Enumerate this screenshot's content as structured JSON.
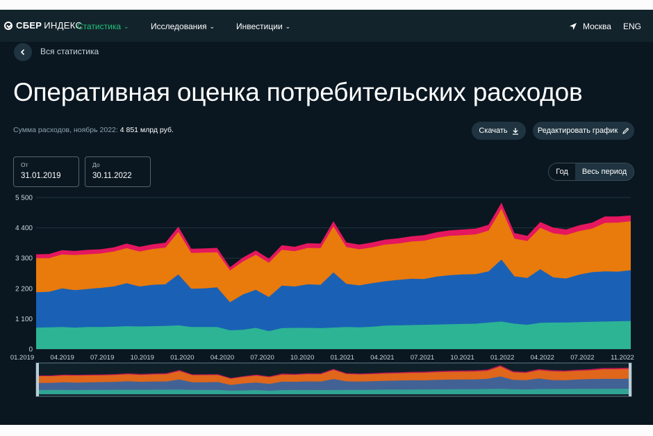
{
  "nav": {
    "logo_part1": "СБЕР",
    "logo_part2": "ИНДЕКС",
    "section": "Статистика",
    "items": [
      "Исследования",
      "Инвестиции"
    ],
    "location": "Москва",
    "language": "ENG"
  },
  "back_label": "Вся статистика",
  "page_title": "Оперативная оценка потребительских расходов",
  "summary": {
    "label": "Сумма расходов, ноябрь 2022:",
    "value": "4 851 млрд руб."
  },
  "buttons": {
    "download": "Скачать",
    "edit_chart": "Редактировать график"
  },
  "date_from": {
    "label": "От",
    "value": "31.01.2019"
  },
  "date_to": {
    "label": "До",
    "value": "30.11.2022"
  },
  "period_toggle": {
    "options": [
      "Год",
      "Весь период"
    ],
    "selected": "Весь период"
  },
  "colors": {
    "accent": "#21c47a",
    "background": "#0a1720",
    "series": [
      "#2db494",
      "#1a61b5",
      "#e97a0c",
      "#e5175f"
    ]
  },
  "chart_data": {
    "type": "area",
    "stacked": true,
    "ylim": [
      0,
      5500
    ],
    "y_ticks": [
      "0",
      "1 100",
      "2 200",
      "3 300",
      "4 400",
      "5 500"
    ],
    "x_ticks": [
      "01.2019",
      "04.2019",
      "07.2019",
      "10.2019",
      "01.2020",
      "04.2020",
      "07.2020",
      "10.2020",
      "01.2021",
      "04.2021",
      "07.2021",
      "10.2021",
      "01.2022",
      "04.2022",
      "07.2022",
      "11.2022"
    ],
    "x": [
      "2019-01",
      "2019-02",
      "2019-03",
      "2019-04",
      "2019-05",
      "2019-06",
      "2019-07",
      "2019-08",
      "2019-09",
      "2019-10",
      "2019-11",
      "2019-12",
      "2020-01",
      "2020-02",
      "2020-03",
      "2020-04",
      "2020-05",
      "2020-06",
      "2020-07",
      "2020-08",
      "2020-09",
      "2020-10",
      "2020-11",
      "2020-12",
      "2021-01",
      "2021-02",
      "2021-03",
      "2021-04",
      "2021-05",
      "2021-06",
      "2021-07",
      "2021-08",
      "2021-09",
      "2021-10",
      "2021-11",
      "2021-12",
      "2022-01",
      "2022-02",
      "2022-03",
      "2022-04",
      "2022-05",
      "2022-06",
      "2022-07",
      "2022-08",
      "2022-09",
      "2022-10",
      "2022-11"
    ],
    "series": [
      {
        "values": [
          780,
          790,
          800,
          780,
          800,
          800,
          810,
          830,
          820,
          830,
          840,
          860,
          800,
          800,
          800,
          680,
          700,
          770,
          650,
          760,
          770,
          770,
          760,
          780,
          800,
          790,
          810,
          850,
          860,
          870,
          880,
          890,
          900,
          910,
          920,
          960,
          1000,
          920,
          880,
          950,
          960,
          960,
          980,
          990,
          1000,
          1010,
          1020
        ]
      },
      {
        "values": [
          1280,
          1290,
          1400,
          1360,
          1380,
          1420,
          1460,
          1560,
          1450,
          1500,
          1510,
          1850,
          1390,
          1400,
          1440,
          1020,
          1280,
          1380,
          1240,
          1540,
          1500,
          1580,
          1570,
          2000,
          1570,
          1520,
          1580,
          1610,
          1650,
          1680,
          1660,
          1740,
          1780,
          1800,
          1800,
          1860,
          2250,
          1720,
          1700,
          1950,
          1640,
          1600,
          1720,
          1800,
          1820,
          1800,
          1840
        ]
      },
      {
        "values": [
          1240,
          1220,
          1230,
          1270,
          1260,
          1250,
          1270,
          1270,
          1270,
          1300,
          1330,
          1540,
          1300,
          1300,
          1270,
          1150,
          1200,
          1270,
          1240,
          1300,
          1280,
          1320,
          1330,
          1670,
          1330,
          1310,
          1300,
          1330,
          1320,
          1350,
          1390,
          1410,
          1430,
          1420,
          1440,
          1480,
          1840,
          1370,
          1340,
          1500,
          1600,
          1580,
          1580,
          1580,
          1760,
          1780,
          1780
        ]
      },
      {
        "values": [
          140,
          150,
          160,
          150,
          160,
          150,
          150,
          170,
          170,
          170,
          180,
          190,
          150,
          150,
          160,
          120,
          140,
          160,
          150,
          170,
          160,
          170,
          170,
          190,
          170,
          170,
          180,
          180,
          190,
          190,
          200,
          200,
          200,
          210,
          210,
          210,
          220,
          200,
          190,
          210,
          210,
          200,
          210,
          220,
          230,
          220,
          211
        ]
      }
    ]
  }
}
